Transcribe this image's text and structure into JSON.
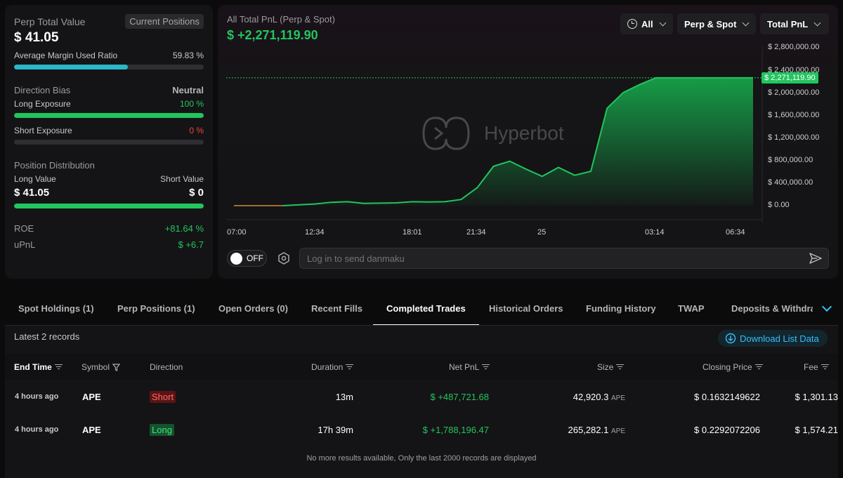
{
  "summary": {
    "perp_total_value_label": "Perp Total Value",
    "current_positions_label": "Current Positions",
    "perp_total_value": "$ 41.05",
    "avg_margin_label": "Average Margin Used Ratio",
    "avg_margin_value": "59.83 %",
    "avg_margin_fraction": 0.5983,
    "direction_bias_label": "Direction Bias",
    "direction_bias_value": "Neutral",
    "long_exposure_label": "Long Exposure",
    "long_exposure_value": "100 %",
    "long_exposure_fraction": 1.0,
    "short_exposure_label": "Short Exposure",
    "short_exposure_value": "0 %",
    "short_exposure_fraction": 0.0,
    "position_distribution_label": "Position Distribution",
    "long_value_label": "Long Value",
    "short_value_label": "Short Value",
    "long_value": "$ 41.05",
    "short_value": "$ 0",
    "long_share_fraction": 1.0,
    "roe_label": "ROE",
    "roe_value": "+81.64 %",
    "upnl_label": "uPnL",
    "upnl_value": "$ +6.7"
  },
  "chart_header": {
    "title": "All Total PnL (Perp & Spot)",
    "value": "$ +2,271,119.90",
    "filter_range": "All",
    "filter_market": "Perp & Spot",
    "filter_metric": "Total PnL",
    "watermark": "Hyperbot"
  },
  "chart_data": {
    "type": "area",
    "x_ticks": [
      "07:00",
      "12:34",
      "18:01",
      "21:34",
      "25",
      "03:14",
      "06:34"
    ],
    "y_ticks": [
      "$ 2,800,000.00",
      "$ 2,400,000.00",
      "$ 2,000,000.00",
      "$ 1,600,000.00",
      "$ 1,200,000.00",
      "$ 800,000.00",
      "$ 400,000.00",
      "$ 0.00"
    ],
    "ylim": [
      0,
      2900000
    ],
    "current_value_label": "$ 2,271,119.90",
    "current_value": 2271119.9,
    "x": [
      0,
      3,
      5,
      6,
      7,
      8,
      9,
      10,
      11,
      12,
      13,
      14,
      15,
      16,
      17,
      18,
      19,
      20,
      21,
      22,
      23,
      24,
      25,
      26,
      27,
      30,
      32
    ],
    "values": [
      0,
      0,
      30000,
      60000,
      70000,
      40000,
      45000,
      50000,
      70000,
      65000,
      70000,
      110000,
      320000,
      700000,
      790000,
      650000,
      520000,
      680000,
      540000,
      610000,
      1730000,
      2010000,
      2150000,
      2271119.9,
      2271119.9,
      2271119.9,
      2271119.9
    ],
    "line_color": "#22c55e",
    "fill_color": "#16a34a",
    "pre_color": "#d08a3a"
  },
  "danmaku": {
    "toggle_label": "OFF",
    "input_placeholder": "Log in to send danmaku"
  },
  "tabs": [
    "Spot Holdings (1)",
    "Perp Positions (1)",
    "Open Orders (0)",
    "Recent Fills",
    "Completed Trades",
    "Historical Orders",
    "Funding History",
    "TWAP",
    "Deposits & Withdraw"
  ],
  "table": {
    "records_label": "Latest 2 records",
    "download_label": "Download List Data",
    "headers": {
      "end_time": "End Time",
      "symbol": "Symbol",
      "direction": "Direction",
      "duration": "Duration",
      "net_pnl": "Net PnL",
      "size": "Size",
      "closing_price": "Closing Price",
      "fee": "Fee"
    },
    "rows": [
      {
        "end_time": "4 hours ago",
        "symbol": "APE",
        "direction": "Short",
        "duration": "13m",
        "net_pnl": "$ +487,721.68",
        "size": "42,920.3",
        "size_unit": "APE",
        "closing_price": "$ 0.1632149622",
        "fee": "$ 1,301.13"
      },
      {
        "end_time": "4 hours ago",
        "symbol": "APE",
        "direction": "Long",
        "duration": "17h 39m",
        "net_pnl": "$ +1,788,196.47",
        "size": "265,282.1",
        "size_unit": "APE",
        "closing_price": "$ 0.2292072206",
        "fee": "$ 1,574.21"
      }
    ],
    "footer": "No more results available, Only the last 2000 records are displayed"
  }
}
